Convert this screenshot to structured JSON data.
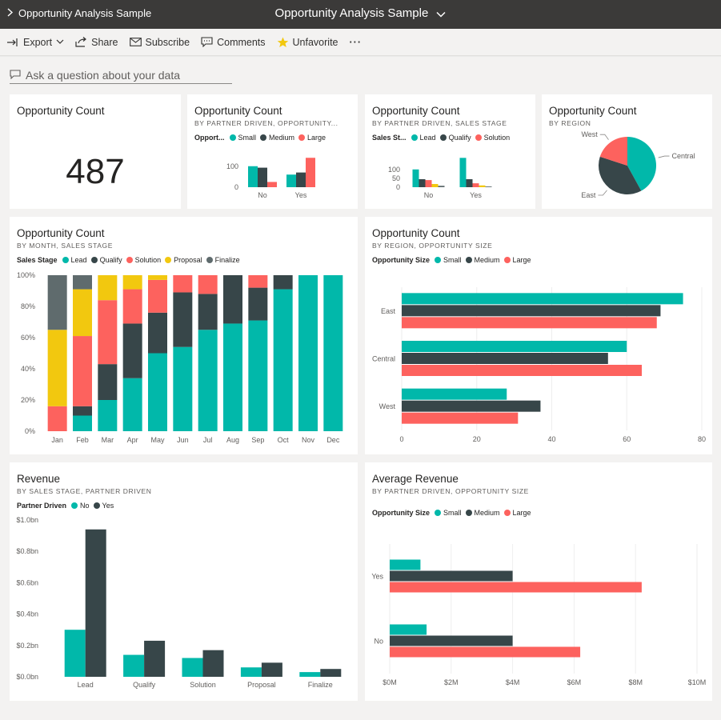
{
  "header": {
    "breadcrumb": "Opportunity Analysis Sample",
    "title": "Opportunity Analysis Sample"
  },
  "toolbar": {
    "export": "Export",
    "share": "Share",
    "subscribe": "Subscribe",
    "comments": "Comments",
    "unfavorite": "Unfavorite",
    "more": "···"
  },
  "qna": {
    "placeholder": "Ask a question about your data"
  },
  "colors": {
    "teal": "#01b8aa",
    "dark": "#374649",
    "red": "#fd625e",
    "yellow": "#f2c80f",
    "gray": "#5f6b6d"
  },
  "tiles": {
    "kpi": {
      "title": "Opportunity Count",
      "value": "487"
    },
    "partner_size": {
      "title": "Opportunity Count",
      "subtitle": "BY PARTNER DRIVEN, OPPORTUNITY...",
      "legend_title": "Opport...",
      "legend": [
        "Small",
        "Medium",
        "Large"
      ]
    },
    "partner_stage": {
      "title": "Opportunity Count",
      "subtitle": "BY PARTNER DRIVEN, SALES STAGE",
      "legend_title": "Sales St...",
      "legend": [
        "Lead",
        "Qualify",
        "Solution"
      ]
    },
    "region_pie": {
      "title": "Opportunity Count",
      "subtitle": "BY REGION"
    },
    "month_stage": {
      "title": "Opportunity Count",
      "subtitle": "BY MONTH, SALES STAGE",
      "legend_title": "Sales Stage",
      "legend": [
        "Lead",
        "Qualify",
        "Solution",
        "Proposal",
        "Finalize"
      ]
    },
    "region_size": {
      "title": "Opportunity Count",
      "subtitle": "BY REGION, OPPORTUNITY SIZE",
      "legend_title": "Opportunity Size",
      "legend": [
        "Small",
        "Medium",
        "Large"
      ]
    },
    "revenue": {
      "title": "Revenue",
      "subtitle": "BY SALES STAGE, PARTNER DRIVEN",
      "legend_title": "Partner Driven",
      "legend": [
        "No",
        "Yes"
      ]
    },
    "avg_revenue": {
      "title": "Average Revenue",
      "subtitle": "BY PARTNER DRIVEN, OPPORTUNITY SIZE",
      "legend_title": "Opportunity Size",
      "legend": [
        "Small",
        "Medium",
        "Large"
      ]
    }
  },
  "chart_data": [
    {
      "id": "partner_size",
      "type": "bar",
      "categories": [
        "No",
        "Yes"
      ],
      "yticks": [
        "0",
        "100"
      ],
      "ylim": [
        0,
        160
      ],
      "series": [
        {
          "name": "Small",
          "values": [
            100,
            60
          ]
        },
        {
          "name": "Medium",
          "values": [
            93,
            70
          ]
        },
        {
          "name": "Large",
          "values": [
            25,
            140
          ]
        }
      ]
    },
    {
      "id": "partner_stage",
      "type": "bar",
      "categories": [
        "No",
        "Yes"
      ],
      "yticks": [
        "0",
        "50",
        "100"
      ],
      "ylim": [
        0,
        180
      ],
      "series": [
        {
          "name": "Lead",
          "values": [
            100,
            165
          ]
        },
        {
          "name": "Qualify",
          "values": [
            45,
            45
          ]
        },
        {
          "name": "Solution",
          "values": [
            40,
            22
          ]
        },
        {
          "name": "Proposal",
          "values": [
            18,
            10
          ]
        },
        {
          "name": "Finalize",
          "values": [
            8,
            4
          ]
        }
      ]
    },
    {
      "id": "region_pie",
      "type": "pie",
      "labels": [
        "Central",
        "East",
        "West"
      ],
      "values": [
        42,
        38,
        20
      ]
    },
    {
      "id": "month_stage",
      "type": "bar",
      "stacked": "percent",
      "categories": [
        "Jan",
        "Feb",
        "Mar",
        "Apr",
        "May",
        "Jun",
        "Jul",
        "Aug",
        "Sep",
        "Oct",
        "Nov",
        "Dec"
      ],
      "yticks": [
        "0%",
        "20%",
        "40%",
        "60%",
        "80%",
        "100%"
      ],
      "series": [
        {
          "name": "Lead",
          "values": [
            0,
            10,
            20,
            34,
            50,
            54,
            65,
            69,
            71,
            91,
            100,
            100
          ]
        },
        {
          "name": "Qualify",
          "values": [
            0,
            6,
            23,
            35,
            26,
            35,
            23,
            31,
            21,
            9,
            0,
            0
          ]
        },
        {
          "name": "Solution",
          "values": [
            16,
            45,
            41,
            22,
            21,
            11,
            12,
            0,
            8,
            0,
            0,
            0
          ]
        },
        {
          "name": "Proposal",
          "values": [
            49,
            30,
            16,
            9,
            3,
            0,
            0,
            0,
            0,
            0,
            0,
            0
          ]
        },
        {
          "name": "Finalize",
          "values": [
            35,
            9,
            0,
            0,
            0,
            0,
            0,
            0,
            0,
            0,
            0,
            0
          ]
        }
      ]
    },
    {
      "id": "region_size",
      "type": "bar",
      "orientation": "horizontal",
      "categories": [
        "East",
        "Central",
        "West"
      ],
      "xticks": [
        "0",
        "20",
        "40",
        "60",
        "80"
      ],
      "xlim": [
        0,
        80
      ],
      "series": [
        {
          "name": "Small",
          "values": [
            75,
            60,
            28
          ]
        },
        {
          "name": "Medium",
          "values": [
            69,
            55,
            37
          ]
        },
        {
          "name": "Large",
          "values": [
            68,
            64,
            31
          ]
        }
      ]
    },
    {
      "id": "revenue",
      "type": "bar",
      "categories": [
        "Lead",
        "Qualify",
        "Solution",
        "Proposal",
        "Finalize"
      ],
      "yticks": [
        "$0.0bn",
        "$0.2bn",
        "$0.4bn",
        "$0.6bn",
        "$0.8bn",
        "$1.0bn"
      ],
      "ylim": [
        0,
        1.0
      ],
      "series": [
        {
          "name": "No",
          "values": [
            0.3,
            0.14,
            0.12,
            0.06,
            0.03
          ]
        },
        {
          "name": "Yes",
          "values": [
            0.94,
            0.23,
            0.17,
            0.09,
            0.05
          ]
        }
      ]
    },
    {
      "id": "avg_revenue",
      "type": "bar",
      "orientation": "horizontal",
      "categories": [
        "Yes",
        "No"
      ],
      "xticks": [
        "$0M",
        "$2M",
        "$4M",
        "$6M",
        "$8M",
        "$10M"
      ],
      "xlim": [
        0,
        10
      ],
      "series": [
        {
          "name": "Small",
          "values": [
            1.0,
            1.2
          ]
        },
        {
          "name": "Medium",
          "values": [
            4.0,
            4.0
          ]
        },
        {
          "name": "Large",
          "values": [
            8.2,
            6.2
          ]
        }
      ]
    }
  ]
}
